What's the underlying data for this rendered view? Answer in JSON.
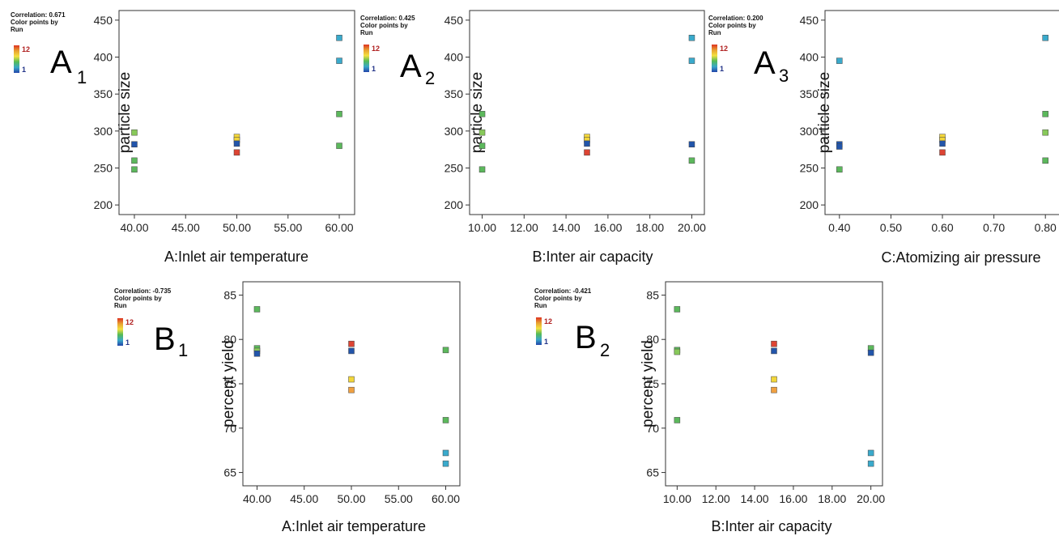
{
  "colors": {
    "c1": "#2255aa",
    "c2": "#3aaacc",
    "c3": "#5cb85c",
    "c4": "#88c95a",
    "c5": "#f2d63a",
    "c6": "#f0a040",
    "c7": "#dd4433"
  },
  "colorbar": {
    "high": "12",
    "low": "1",
    "gradient": [
      "#dd3322",
      "#e8a030",
      "#f4e040",
      "#55bb55",
      "#3aa8c8",
      "#2244aa"
    ]
  },
  "chart_data": [
    {
      "type": "scatter",
      "panel": "A",
      "panel_sub": "1",
      "stat_lines": [
        "Correlation: 0.671",
        "Color points by",
        "Run"
      ],
      "xlabel": "A:Inlet air temperature",
      "ylabel": "particle size",
      "xticks": [
        "40.00",
        "45.00",
        "50.00",
        "55.00",
        "60.00"
      ],
      "xlim": [
        38.5,
        61.5
      ],
      "yticks": [
        "200",
        "250",
        "300",
        "350",
        "400",
        "450"
      ],
      "ylim": [
        187,
        463
      ],
      "points": [
        {
          "x": 40,
          "y": 298,
          "c": "c4"
        },
        {
          "x": 40,
          "y": 282,
          "c": "c1"
        },
        {
          "x": 40,
          "y": 260,
          "c": "c3"
        },
        {
          "x": 40,
          "y": 248,
          "c": "c3"
        },
        {
          "x": 50,
          "y": 292,
          "c": "c5"
        },
        {
          "x": 50,
          "y": 288,
          "c": "c5"
        },
        {
          "x": 50,
          "y": 283,
          "c": "c1"
        },
        {
          "x": 50,
          "y": 271,
          "c": "c7"
        },
        {
          "x": 60,
          "y": 426,
          "c": "c2"
        },
        {
          "x": 60,
          "y": 395,
          "c": "c2"
        },
        {
          "x": 60,
          "y": 323,
          "c": "c3"
        },
        {
          "x": 60,
          "y": 280,
          "c": "c3"
        }
      ]
    },
    {
      "type": "scatter",
      "panel": "A",
      "panel_sub": "2",
      "stat_lines": [
        "Correlation: 0.425",
        "Color points by",
        "Run"
      ],
      "xlabel": "B:Inter air capacity",
      "ylabel": "particle size",
      "xticks": [
        "10.00",
        "12.00",
        "14.00",
        "16.00",
        "18.00",
        "20.00"
      ],
      "xlim": [
        9.4,
        20.6
      ],
      "yticks": [
        "200",
        "250",
        "300",
        "350",
        "400",
        "450"
      ],
      "ylim": [
        187,
        463
      ],
      "points": [
        {
          "x": 10,
          "y": 323,
          "c": "c3"
        },
        {
          "x": 10,
          "y": 298,
          "c": "c4"
        },
        {
          "x": 10,
          "y": 280,
          "c": "c3"
        },
        {
          "x": 10,
          "y": 248,
          "c": "c3"
        },
        {
          "x": 15,
          "y": 292,
          "c": "c5"
        },
        {
          "x": 15,
          "y": 288,
          "c": "c5"
        },
        {
          "x": 15,
          "y": 283,
          "c": "c1"
        },
        {
          "x": 15,
          "y": 271,
          "c": "c7"
        },
        {
          "x": 20,
          "y": 426,
          "c": "c2"
        },
        {
          "x": 20,
          "y": 395,
          "c": "c2"
        },
        {
          "x": 20,
          "y": 282,
          "c": "c1"
        },
        {
          "x": 20,
          "y": 260,
          "c": "c3"
        }
      ]
    },
    {
      "type": "scatter",
      "panel": "A",
      "panel_sub": "3",
      "stat_lines": [
        "Correlation: 0.200",
        "Color points by",
        "Run"
      ],
      "xlabel": "C:Atomizing air pressure",
      "ylabel": "particle size",
      "xticks": [
        "0.40",
        "0.50",
        "0.60",
        "0.70",
        "0.80"
      ],
      "xlim": [
        0.372,
        0.828
      ],
      "yticks": [
        "200",
        "250",
        "300",
        "350",
        "400",
        "450"
      ],
      "ylim": [
        187,
        463
      ],
      "points": [
        {
          "x": 0.4,
          "y": 395,
          "c": "c2"
        },
        {
          "x": 0.4,
          "y": 282,
          "c": "c1"
        },
        {
          "x": 0.4,
          "y": 279,
          "c": "c1"
        },
        {
          "x": 0.4,
          "y": 248,
          "c": "c3"
        },
        {
          "x": 0.6,
          "y": 292,
          "c": "c5"
        },
        {
          "x": 0.6,
          "y": 288,
          "c": "c5"
        },
        {
          "x": 0.6,
          "y": 283,
          "c": "c1"
        },
        {
          "x": 0.6,
          "y": 271,
          "c": "c7"
        },
        {
          "x": 0.8,
          "y": 426,
          "c": "c2"
        },
        {
          "x": 0.8,
          "y": 323,
          "c": "c3"
        },
        {
          "x": 0.8,
          "y": 298,
          "c": "c4"
        },
        {
          "x": 0.8,
          "y": 260,
          "c": "c3"
        }
      ]
    },
    {
      "type": "scatter",
      "panel": "B",
      "panel_sub": "1",
      "stat_lines": [
        "Correlation: -0.735",
        "Color points by",
        "Run"
      ],
      "xlabel": "A:Inlet air temperature",
      "ylabel": "percent yield",
      "xticks": [
        "40.00",
        "45.00",
        "50.00",
        "55.00",
        "60.00"
      ],
      "xlim": [
        38.5,
        61.5
      ],
      "yticks": [
        "65",
        "70",
        "75",
        "80",
        "85"
      ],
      "ylim": [
        63.5,
        86.5
      ],
      "points": [
        {
          "x": 40,
          "y": 83.4,
          "c": "c3"
        },
        {
          "x": 40,
          "y": 79.0,
          "c": "c3"
        },
        {
          "x": 40,
          "y": 78.7,
          "c": "c4"
        },
        {
          "x": 40,
          "y": 78.4,
          "c": "c1"
        },
        {
          "x": 50,
          "y": 79.5,
          "c": "c7"
        },
        {
          "x": 50,
          "y": 78.7,
          "c": "c1"
        },
        {
          "x": 50,
          "y": 75.5,
          "c": "c5"
        },
        {
          "x": 50,
          "y": 74.3,
          "c": "c6"
        },
        {
          "x": 60,
          "y": 78.8,
          "c": "c3"
        },
        {
          "x": 60,
          "y": 70.9,
          "c": "c3"
        },
        {
          "x": 60,
          "y": 67.2,
          "c": "c2"
        },
        {
          "x": 60,
          "y": 66.0,
          "c": "c2"
        }
      ]
    },
    {
      "type": "scatter",
      "panel": "B",
      "panel_sub": "2",
      "stat_lines": [
        "Correlation: -0.421",
        "Color points by",
        "Run"
      ],
      "xlabel": "B:Inter air capacity",
      "ylabel": "percent yield",
      "xticks": [
        "10.00",
        "12.00",
        "14.00",
        "16.00",
        "18.00",
        "20.00"
      ],
      "xlim": [
        9.4,
        20.6
      ],
      "yticks": [
        "65",
        "70",
        "75",
        "80",
        "85"
      ],
      "ylim": [
        63.5,
        86.5
      ],
      "points": [
        {
          "x": 10,
          "y": 83.4,
          "c": "c3"
        },
        {
          "x": 10,
          "y": 78.8,
          "c": "c3"
        },
        {
          "x": 10,
          "y": 78.6,
          "c": "c4"
        },
        {
          "x": 10,
          "y": 70.9,
          "c": "c3"
        },
        {
          "x": 15,
          "y": 79.5,
          "c": "c7"
        },
        {
          "x": 15,
          "y": 78.7,
          "c": "c1"
        },
        {
          "x": 15,
          "y": 75.5,
          "c": "c5"
        },
        {
          "x": 15,
          "y": 74.3,
          "c": "c6"
        },
        {
          "x": 20,
          "y": 79.0,
          "c": "c3"
        },
        {
          "x": 20,
          "y": 78.5,
          "c": "c1"
        },
        {
          "x": 20,
          "y": 67.2,
          "c": "c2"
        },
        {
          "x": 20,
          "y": 66.0,
          "c": "c2"
        }
      ]
    }
  ]
}
